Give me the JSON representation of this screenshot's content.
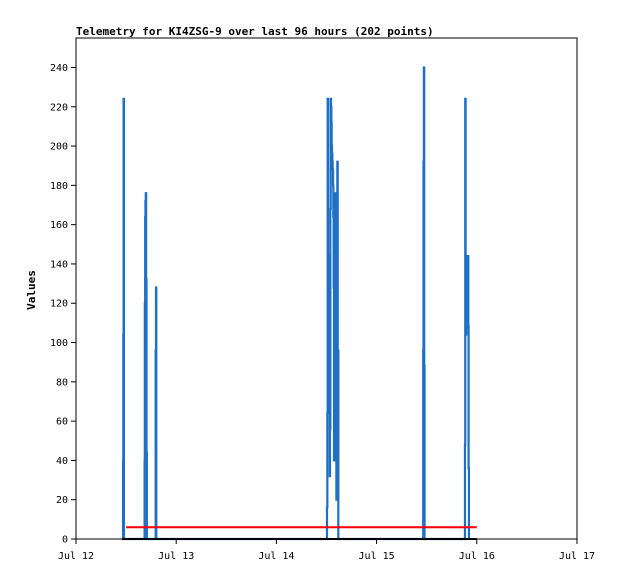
{
  "chart_data": {
    "type": "line",
    "title": "Telemetry for KI4ZSG-9 over last 96 hours (202 points)",
    "ylabel": "Values",
    "xlabel": "",
    "ylim": [
      0,
      255
    ],
    "yticks": [
      0,
      20,
      40,
      60,
      80,
      100,
      120,
      140,
      160,
      180,
      200,
      220,
      240
    ],
    "xlim": [
      "Jul 12 00:00",
      "Jul 17 00:00"
    ],
    "xticks": [
      {
        "x": "Jul 12 00:00",
        "label": "Jul 12"
      },
      {
        "x": "Jul 13 00:00",
        "label": "Jul 13"
      },
      {
        "x": "Jul 14 00:00",
        "label": "Jul 14"
      },
      {
        "x": "Jul 15 00:00",
        "label": "Jul 15"
      },
      {
        "x": "Jul 16 00:00",
        "label": "Jul 16"
      },
      {
        "x": "Jul 17 00:00",
        "label": "Jul 17"
      }
    ],
    "grid": false,
    "series": [
      {
        "color": "#1f6fc5",
        "points": [
          [
            "Jul 12 11:17",
            0
          ],
          [
            "Jul 12 11:17",
            40
          ],
          [
            "Jul 12 11:20",
            40
          ],
          [
            "Jul 12 11:20",
            104
          ],
          [
            "Jul 12 11:24",
            104
          ],
          [
            "Jul 12 11:24",
            224
          ],
          [
            "Jul 12 11:29",
            224
          ],
          [
            "Jul 12 11:29",
            0
          ],
          [
            "Jul 12 16:26",
            0
          ],
          [
            "Jul 12 16:26",
            40
          ],
          [
            "Jul 12 16:29",
            40
          ],
          [
            "Jul 12 16:29",
            120
          ],
          [
            "Jul 12 16:34",
            120
          ],
          [
            "Jul 12 16:34",
            164
          ],
          [
            "Jul 12 16:38",
            164
          ],
          [
            "Jul 12 16:38",
            172
          ],
          [
            "Jul 12 16:43",
            172
          ],
          [
            "Jul 12 16:43",
            176
          ],
          [
            "Jul 12 16:48",
            176
          ],
          [
            "Jul 12 16:48",
            132
          ],
          [
            "Jul 12 16:53",
            132
          ],
          [
            "Jul 12 16:53",
            44
          ],
          [
            "Jul 12 16:58",
            44
          ],
          [
            "Jul 12 16:58",
            0
          ],
          [
            "Jul 12 19:05",
            0
          ],
          [
            "Jul 12 19:05",
            96
          ],
          [
            "Jul 12 19:10",
            96
          ],
          [
            "Jul 12 19:10",
            128
          ],
          [
            "Jul 12 19:14",
            128
          ],
          [
            "Jul 12 19:14",
            0
          ],
          [
            "Jul 14 12:07",
            0
          ],
          [
            "Jul 14 12:07",
            16
          ],
          [
            "Jul 14 12:12",
            16
          ],
          [
            "Jul 14 12:12",
            64
          ],
          [
            "Jul 14 12:17",
            64
          ],
          [
            "Jul 14 12:17",
            224
          ],
          [
            "Jul 14 12:22",
            224
          ],
          [
            "Jul 14 12:22",
            144
          ],
          [
            "Jul 14 12:26",
            144
          ],
          [
            "Jul 14 12:26",
            64
          ],
          [
            "Jul 14 12:31",
            64
          ],
          [
            "Jul 14 12:31",
            112
          ],
          [
            "Jul 14 12:36",
            112
          ],
          [
            "Jul 14 12:36",
            128
          ],
          [
            "Jul 14 12:41",
            128
          ],
          [
            "Jul 14 12:41",
            96
          ],
          [
            "Jul 14 12:46",
            96
          ],
          [
            "Jul 14 12:46",
            32
          ],
          [
            "Jul 14 12:50",
            32
          ],
          [
            "Jul 14 12:50",
            56
          ],
          [
            "Jul 14 12:55",
            56
          ],
          [
            "Jul 14 12:55",
            168
          ],
          [
            "Jul 14 13:00",
            168
          ],
          [
            "Jul 14 13:00",
            224
          ],
          [
            "Jul 14 13:05",
            224
          ],
          [
            "Jul 14 13:05",
            220
          ],
          [
            "Jul 14 13:10",
            220
          ],
          [
            "Jul 14 13:10",
            212
          ],
          [
            "Jul 14 13:14",
            212
          ],
          [
            "Jul 14 13:14",
            200
          ],
          [
            "Jul 14 13:19",
            200
          ],
          [
            "Jul 14 13:19",
            196
          ],
          [
            "Jul 14 13:24",
            196
          ],
          [
            "Jul 14 13:24",
            192
          ],
          [
            "Jul 14 13:29",
            192
          ],
          [
            "Jul 14 13:29",
            188
          ],
          [
            "Jul 14 13:34",
            188
          ],
          [
            "Jul 14 13:34",
            180
          ],
          [
            "Jul 14 13:38",
            180
          ],
          [
            "Jul 14 13:38",
            164
          ],
          [
            "Jul 14 13:43",
            164
          ],
          [
            "Jul 14 13:43",
            128
          ],
          [
            "Jul 14 13:48",
            128
          ],
          [
            "Jul 14 13:48",
            40
          ],
          [
            "Jul 14 13:53",
            40
          ],
          [
            "Jul 14 13:53",
            128
          ],
          [
            "Jul 14 13:58",
            128
          ],
          [
            "Jul 14 13:58",
            64
          ],
          [
            "Jul 14 14:02",
            64
          ],
          [
            "Jul 14 14:02",
            112
          ],
          [
            "Jul 14 14:07",
            112
          ],
          [
            "Jul 14 14:07",
            176
          ],
          [
            "Jul 14 14:12",
            176
          ],
          [
            "Jul 14 14:12",
            72
          ],
          [
            "Jul 14 14:17",
            72
          ],
          [
            "Jul 14 14:17",
            128
          ],
          [
            "Jul 14 14:22",
            128
          ],
          [
            "Jul 14 14:22",
            20
          ],
          [
            "Jul 14 14:26",
            20
          ],
          [
            "Jul 14 14:26",
            48
          ],
          [
            "Jul 14 14:31",
            48
          ],
          [
            "Jul 14 14:31",
            144
          ],
          [
            "Jul 14 14:36",
            144
          ],
          [
            "Jul 14 14:36",
            192
          ],
          [
            "Jul 14 14:41",
            192
          ],
          [
            "Jul 14 14:41",
            50
          ],
          [
            "Jul 14 14:46",
            50
          ],
          [
            "Jul 14 14:46",
            96
          ],
          [
            "Jul 14 14:50",
            96
          ],
          [
            "Jul 14 14:50",
            0
          ],
          [
            "Jul 15 11:10",
            0
          ],
          [
            "Jul 15 11:10",
            96
          ],
          [
            "Jul 15 11:14",
            96
          ],
          [
            "Jul 15 11:14",
            192
          ],
          [
            "Jul 15 11:19",
            192
          ],
          [
            "Jul 15 11:19",
            240
          ],
          [
            "Jul 15 11:24",
            240
          ],
          [
            "Jul 15 11:24",
            88
          ],
          [
            "Jul 15 11:29",
            88
          ],
          [
            "Jul 15 11:29",
            0
          ],
          [
            "Jul 15 21:10",
            0
          ],
          [
            "Jul 15 21:10",
            48
          ],
          [
            "Jul 15 21:14",
            48
          ],
          [
            "Jul 15 21:14",
            224
          ],
          [
            "Jul 15 21:19",
            224
          ],
          [
            "Jul 15 21:19",
            144
          ],
          [
            "Jul 15 21:24",
            144
          ],
          [
            "Jul 15 21:24",
            104
          ],
          [
            "Jul 15 21:29",
            104
          ],
          [
            "Jul 15 21:29",
            120
          ],
          [
            "Jul 15 21:34",
            120
          ],
          [
            "Jul 15 21:34",
            128
          ],
          [
            "Jul 15 21:38",
            128
          ],
          [
            "Jul 15 21:38",
            136
          ],
          [
            "Jul 15 21:43",
            136
          ],
          [
            "Jul 15 21:43",
            140
          ],
          [
            "Jul 15 21:48",
            140
          ],
          [
            "Jul 15 21:48",
            144
          ],
          [
            "Jul 15 21:53",
            144
          ],
          [
            "Jul 15 21:53",
            144
          ],
          [
            "Jul 15 21:58",
            144
          ],
          [
            "Jul 15 21:58",
            108
          ],
          [
            "Jul 15 22:02",
            108
          ],
          [
            "Jul 15 22:02",
            36
          ],
          [
            "Jul 15 22:07",
            36
          ],
          [
            "Jul 15 22:07",
            0
          ],
          [
            "Jul 15 22:12",
            0
          ]
        ]
      },
      {
        "color": "#ff0000",
        "points": [
          [
            "Jul 12 12:00",
            6
          ],
          [
            "Jul 16 00:00",
            6
          ]
        ]
      },
      {
        "color": "#000000",
        "points": [
          [
            "Jul 12 11:00",
            0
          ],
          [
            "Jul 16 00:00",
            0
          ]
        ]
      }
    ]
  }
}
